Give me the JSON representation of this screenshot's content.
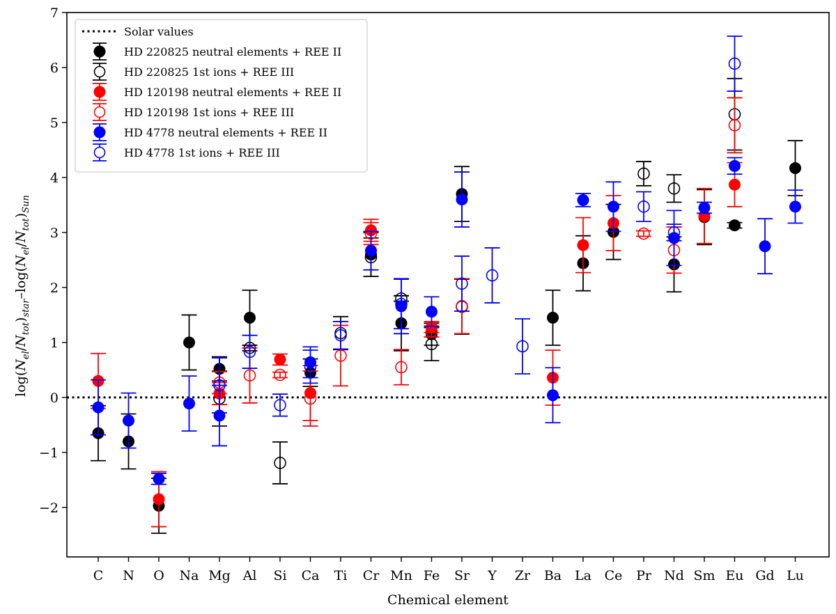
{
  "chart_data": {
    "type": "scatter",
    "xlabel": "Chemical element",
    "ylabel": "log(N_el/N_tot)_star–log(N_el/N_tot)_Sun",
    "ylabel_parts": {
      "pre1": "log(",
      "N1": "N",
      "el1": "el",
      "slash1": "/",
      "N2": "N",
      "tot1": "tot",
      "post1": ")",
      "star": "star",
      "dash": "–log(",
      "N3": "N",
      "el2": "el",
      "slash2": "/",
      "N4": "N",
      "tot2": "tot",
      "post2": ")",
      "sun": "Sun"
    },
    "ylim": [
      -2.9,
      7.0
    ],
    "yticks": [
      -2,
      -1,
      0,
      1,
      2,
      3,
      4,
      5,
      6,
      7
    ],
    "ytick_labels": [
      "−2",
      "−1",
      "0",
      "1",
      "2",
      "3",
      "4",
      "5",
      "6",
      "7"
    ],
    "categories": [
      "C",
      "N",
      "O",
      "Na",
      "Mg",
      "Al",
      "Si",
      "Ca",
      "Ti",
      "Cr",
      "Mn",
      "Fe",
      "Sr",
      "Y",
      "Zr",
      "Ba",
      "La",
      "Ce",
      "Pr",
      "Nd",
      "Sm",
      "Eu",
      "Gd",
      "Lu"
    ],
    "reference_line": {
      "name": "Solar values",
      "y": 0,
      "style": "dotted",
      "color": "#000000"
    },
    "legend": {
      "placement": "top-left"
    },
    "series": [
      {
        "name": "HD 220825 neutral elements + REE II",
        "color": "#000000",
        "marker": "filled",
        "points": [
          {
            "x": "C",
            "y": -0.65,
            "err": 0.5
          },
          {
            "x": "N",
            "y": -0.8,
            "err": 0.5
          },
          {
            "x": "O",
            "y": -1.97,
            "err": 0.5
          },
          {
            "x": "Na",
            "y": 1.0,
            "err": 0.5
          },
          {
            "x": "Mg",
            "y": 0.52,
            "err": 0.22
          },
          {
            "x": "Al",
            "y": 1.45,
            "err": 0.5
          },
          {
            "x": "Ca",
            "y": 0.45,
            "err": 0.25
          },
          {
            "x": "Cr",
            "y": 2.6,
            "err": 0.4
          },
          {
            "x": "Mn",
            "y": 1.35,
            "err": 0.5
          },
          {
            "x": "Fe",
            "y": 1.15,
            "err": 0.2
          },
          {
            "x": "Sr",
            "y": 3.7,
            "err": 0.5
          },
          {
            "x": "Ba",
            "y": 1.45,
            "err": 0.5
          },
          {
            "x": "La",
            "y": 2.44,
            "err": 0.5
          },
          {
            "x": "Ce",
            "y": 3.01,
            "err": 0.5
          },
          {
            "x": "Nd",
            "y": 2.42,
            "err": 0.5
          },
          {
            "x": "Sm",
            "y": 3.28,
            "err": 0.5
          },
          {
            "x": "Eu",
            "y": 3.13,
            "err": 0.05
          },
          {
            "x": "Lu",
            "y": 4.17,
            "err": 0.5
          }
        ]
      },
      {
        "name": "HD 220825 1st ions + REE III",
        "color": "#000000",
        "marker": "open",
        "points": [
          {
            "x": "Mg",
            "y": -0.02,
            "err": 0.5
          },
          {
            "x": "Al",
            "y": 0.9,
            "err": 0.05
          },
          {
            "x": "Si",
            "y": -1.19,
            "err": 0.38
          },
          {
            "x": "Ti",
            "y": 1.17,
            "err": 0.3
          },
          {
            "x": "Cr",
            "y": 2.55,
            "err": 0.35
          },
          {
            "x": "Mn",
            "y": 1.8,
            "err": 0.05
          },
          {
            "x": "Fe",
            "y": 0.97,
            "err": 0.3
          },
          {
            "x": "Sr",
            "y": 1.65,
            "err": 0.5
          },
          {
            "x": "Pr",
            "y": 4.07,
            "err": 0.22
          },
          {
            "x": "Nd",
            "y": 3.8,
            "err": 0.25
          },
          {
            "x": "Eu",
            "y": 5.15,
            "err": 0.65
          }
        ]
      },
      {
        "name": "HD 120198 neutral elements + REE II",
        "color": "#ff0000",
        "marker": "filled",
        "points": [
          {
            "x": "C",
            "y": 0.3,
            "err": 0.5
          },
          {
            "x": "O",
            "y": -1.85,
            "err": 0.5
          },
          {
            "x": "Mg",
            "y": 0.07,
            "err": 0.2
          },
          {
            "x": "Si",
            "y": 0.69,
            "err": 0.1
          },
          {
            "x": "Ca",
            "y": 0.08,
            "err": 0.5
          },
          {
            "x": "Cr",
            "y": 3.04,
            "err": 0.2
          },
          {
            "x": "Fe",
            "y": 1.28,
            "err": 0.1
          },
          {
            "x": "Ba",
            "y": 0.36,
            "err": 0.5
          },
          {
            "x": "La",
            "y": 2.77,
            "err": 0.5
          },
          {
            "x": "Ce",
            "y": 3.17,
            "err": 0.5
          },
          {
            "x": "Sm",
            "y": 3.3,
            "err": 0.5
          },
          {
            "x": "Eu",
            "y": 3.87,
            "err": 0.4
          }
        ]
      },
      {
        "name": "HD 120198 1st ions + REE III",
        "color": "#ff0000",
        "marker": "open",
        "points": [
          {
            "x": "Mg",
            "y": 0.27,
            "err": 0.2
          },
          {
            "x": "Al",
            "y": 0.4,
            "err": 0.5
          },
          {
            "x": "Si",
            "y": 0.41,
            "err": 0.05
          },
          {
            "x": "Ca",
            "y": -0.02,
            "err": 0.5
          },
          {
            "x": "Ti",
            "y": 0.76,
            "err": 0.55
          },
          {
            "x": "Cr",
            "y": 2.98,
            "err": 0.2
          },
          {
            "x": "Mn",
            "y": 0.55,
            "err": 0.32
          },
          {
            "x": "Fe",
            "y": 1.2,
            "err": 0.1
          },
          {
            "x": "Sr",
            "y": 1.66,
            "err": 0.5
          },
          {
            "x": "Pr",
            "y": 2.98,
            "err": 0.05
          },
          {
            "x": "Nd",
            "y": 2.68,
            "err": 0.42
          },
          {
            "x": "Eu",
            "y": 4.95,
            "err": 0.5
          }
        ]
      },
      {
        "name": "HD 4778 neutral elements + REE II",
        "color": "#0000ff",
        "marker": "filled",
        "points": [
          {
            "x": "C",
            "y": -0.18,
            "err": 0.5
          },
          {
            "x": "N",
            "y": -0.42,
            "err": 0.5
          },
          {
            "x": "O",
            "y": -1.48,
            "err": 0.1
          },
          {
            "x": "Na",
            "y": -0.11,
            "err": 0.5
          },
          {
            "x": "Mg",
            "y": -0.33,
            "err": 0.55
          },
          {
            "x": "Ca",
            "y": 0.64,
            "err": 0.28
          },
          {
            "x": "Cr",
            "y": 2.67,
            "err": 0.35
          },
          {
            "x": "Mn",
            "y": 1.66,
            "err": 0.5
          },
          {
            "x": "Fe",
            "y": 1.56,
            "err": 0.27
          },
          {
            "x": "Sr",
            "y": 3.6,
            "err": 0.5
          },
          {
            "x": "Ba",
            "y": 0.04,
            "err": 0.5
          },
          {
            "x": "La",
            "y": 3.59,
            "err": 0.12
          },
          {
            "x": "Ce",
            "y": 3.47,
            "err": 0.45
          },
          {
            "x": "Nd",
            "y": 2.9,
            "err": 0.5
          },
          {
            "x": "Sm",
            "y": 3.45,
            "err": 0.1
          },
          {
            "x": "Eu",
            "y": 4.21,
            "err": 0.15
          },
          {
            "x": "Gd",
            "y": 2.75,
            "err": 0.5
          },
          {
            "x": "Lu",
            "y": 3.47,
            "err": 0.3
          }
        ]
      },
      {
        "name": "HD 4778 1st ions + REE III",
        "color": "#0000ff",
        "marker": "open",
        "points": [
          {
            "x": "Mg",
            "y": 0.22,
            "err": 0.5
          },
          {
            "x": "Al",
            "y": 0.83,
            "err": 0.3
          },
          {
            "x": "Si",
            "y": -0.14,
            "err": 0.2
          },
          {
            "x": "Ca",
            "y": 0.56,
            "err": 0.3
          },
          {
            "x": "Ti",
            "y": 1.13,
            "err": 0.25
          },
          {
            "x": "Mn",
            "y": 1.7,
            "err": 0.45
          },
          {
            "x": "Sr",
            "y": 2.07,
            "err": 0.5
          },
          {
            "x": "Y",
            "y": 2.22,
            "err": 0.5
          },
          {
            "x": "Zr",
            "y": 0.93,
            "err": 0.5
          },
          {
            "x": "Pr",
            "y": 3.47,
            "err": 0.27
          },
          {
            "x": "Nd",
            "y": 3.0,
            "err": 0.15
          },
          {
            "x": "Eu",
            "y": 6.07,
            "err": 0.5
          }
        ]
      }
    ]
  }
}
